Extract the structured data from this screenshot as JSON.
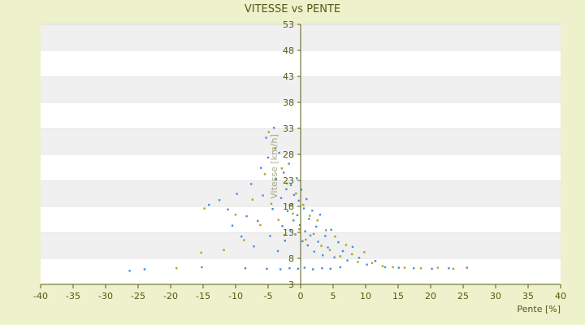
{
  "chart_data": {
    "type": "scatter",
    "title": "VITESSE vs PENTE",
    "xlabel": "Pente [%]",
    "ylabel": "Vitesse [km/h]",
    "xlim": [
      -40,
      40
    ],
    "ylim": [
      3,
      53
    ],
    "x_ticks": [
      -40,
      -35,
      -30,
      -25,
      -20,
      -15,
      -10,
      -5,
      0,
      5,
      10,
      15,
      20,
      25,
      30,
      35,
      40
    ],
    "y_ticks": [
      3,
      8,
      13,
      18,
      23,
      28,
      33,
      38,
      43,
      48,
      53
    ],
    "grid": "alternating horizontal bands",
    "legend": "none",
    "colors": {
      "background": "#edf1cc",
      "band_light": "#ffffff",
      "band_dark": "#f0f0f0",
      "axis": "#5a5a10",
      "text": "#555a12",
      "series_a": "#4a8fd8",
      "series_b": "#a7a818"
    },
    "series": [
      {
        "color": "#4a8fd8",
        "points": [
          [
            -26.3,
            5.6
          ],
          [
            -24,
            5.9
          ],
          [
            -15.2,
            6.3
          ],
          [
            -14.1,
            18.3
          ],
          [
            -12.5,
            19.2
          ],
          [
            -11.2,
            17.4
          ],
          [
            -10.5,
            14.3
          ],
          [
            -9.8,
            20.4
          ],
          [
            -9.1,
            12.2
          ],
          [
            -8.3,
            16.1
          ],
          [
            -7.6,
            22.3
          ],
          [
            -7.2,
            10.3
          ],
          [
            -6.6,
            15.2
          ],
          [
            -6.1,
            25.4
          ],
          [
            -5.8,
            20.1
          ],
          [
            -5.3,
            31.2
          ],
          [
            -5,
            27.4
          ],
          [
            -4.7,
            12.3
          ],
          [
            -4.3,
            17.5
          ],
          [
            -4.1,
            33.1
          ],
          [
            -3.8,
            23.2
          ],
          [
            -3.5,
            9.4
          ],
          [
            -3.3,
            28.3
          ],
          [
            -3,
            19.6
          ],
          [
            -2.8,
            14.2
          ],
          [
            -2.6,
            24.5
          ],
          [
            -2.4,
            11.4
          ],
          [
            -2.2,
            21.3
          ],
          [
            -2,
            17.1
          ],
          [
            -1.8,
            26.2
          ],
          [
            -1.6,
            13.4
          ],
          [
            -1.5,
            22.1
          ],
          [
            -1.3,
            18.4
          ],
          [
            -1.1,
            15.3
          ],
          [
            -1,
            20.2
          ],
          [
            -0.8,
            12.6
          ],
          [
            -0.6,
            23.4
          ],
          [
            -0.5,
            16.3
          ],
          [
            -0.3,
            19.1
          ],
          [
            -0.1,
            14.4
          ],
          [
            0.1,
            21.2
          ],
          [
            0.3,
            11.3
          ],
          [
            0.5,
            17.6
          ],
          [
            0.7,
            13.2
          ],
          [
            0.9,
            19.4
          ],
          [
            1.1,
            10.5
          ],
          [
            1.3,
            15.6
          ],
          [
            1.5,
            12.4
          ],
          [
            1.8,
            17.2
          ],
          [
            2.1,
            9.3
          ],
          [
            2.4,
            14.1
          ],
          [
            2.7,
            11.2
          ],
          [
            3,
            16.4
          ],
          [
            3.4,
            8.6
          ],
          [
            3.8,
            12.3
          ],
          [
            4.2,
            10.1
          ],
          [
            4.7,
            13.5
          ],
          [
            5.2,
            8.2
          ],
          [
            5.8,
            11.1
          ],
          [
            6.5,
            9.4
          ],
          [
            7.2,
            7.6
          ],
          [
            8,
            10.2
          ],
          [
            9,
            8.1
          ],
          [
            10.2,
            6.8
          ],
          [
            11.5,
            7.5
          ],
          [
            13,
            6.3
          ],
          [
            15.1,
            6.2
          ],
          [
            17.4,
            6.1
          ],
          [
            20.2,
            6
          ],
          [
            22.8,
            6.1
          ],
          [
            25.6,
            6.2
          ],
          [
            -8.5,
            6.1
          ],
          [
            -5.2,
            6
          ],
          [
            -3.1,
            5.9
          ],
          [
            -1.7,
            6.1
          ],
          [
            -0.4,
            6
          ],
          [
            0.6,
            6.2
          ],
          [
            1.9,
            5.9
          ],
          [
            3.3,
            6.1
          ],
          [
            4.6,
            6
          ],
          [
            6.1,
            6.3
          ]
        ]
      },
      {
        "color": "#a7a818",
        "points": [
          [
            -19.1,
            6.1
          ],
          [
            -15.3,
            9.1
          ],
          [
            -14.8,
            17.6
          ],
          [
            -11.8,
            9.6
          ],
          [
            -10,
            16.4
          ],
          [
            -8.7,
            11.5
          ],
          [
            -7.4,
            19.3
          ],
          [
            -6.2,
            14.4
          ],
          [
            -5.5,
            24.2
          ],
          [
            -4.9,
            32.3
          ],
          [
            -4.5,
            18.5
          ],
          [
            -3.9,
            29.1
          ],
          [
            -3.4,
            15.4
          ],
          [
            -2.9,
            25.3
          ],
          [
            -2.5,
            12.5
          ],
          [
            -2.1,
            22.4
          ],
          [
            -1.7,
            18.2
          ],
          [
            -1.2,
            16.6
          ],
          [
            -0.7,
            20.5
          ],
          [
            -0.2,
            13.6
          ],
          [
            0.4,
            18.3
          ],
          [
            0.8,
            11.6
          ],
          [
            1.4,
            16.2
          ],
          [
            2,
            12.7
          ],
          [
            2.6,
            15.3
          ],
          [
            3.2,
            10.4
          ],
          [
            3.9,
            13.4
          ],
          [
            4.5,
            9.6
          ],
          [
            5.3,
            12.2
          ],
          [
            6.1,
            8.4
          ],
          [
            7,
            10.6
          ],
          [
            7.9,
            8.8
          ],
          [
            8.8,
            7.3
          ],
          [
            9.8,
            9.2
          ],
          [
            11,
            7.1
          ],
          [
            12.6,
            6.5
          ],
          [
            14.2,
            6.3
          ],
          [
            16,
            6.2
          ],
          [
            18.5,
            6.1
          ],
          [
            21.1,
            6.2
          ],
          [
            23.5,
            6
          ]
        ]
      }
    ]
  }
}
